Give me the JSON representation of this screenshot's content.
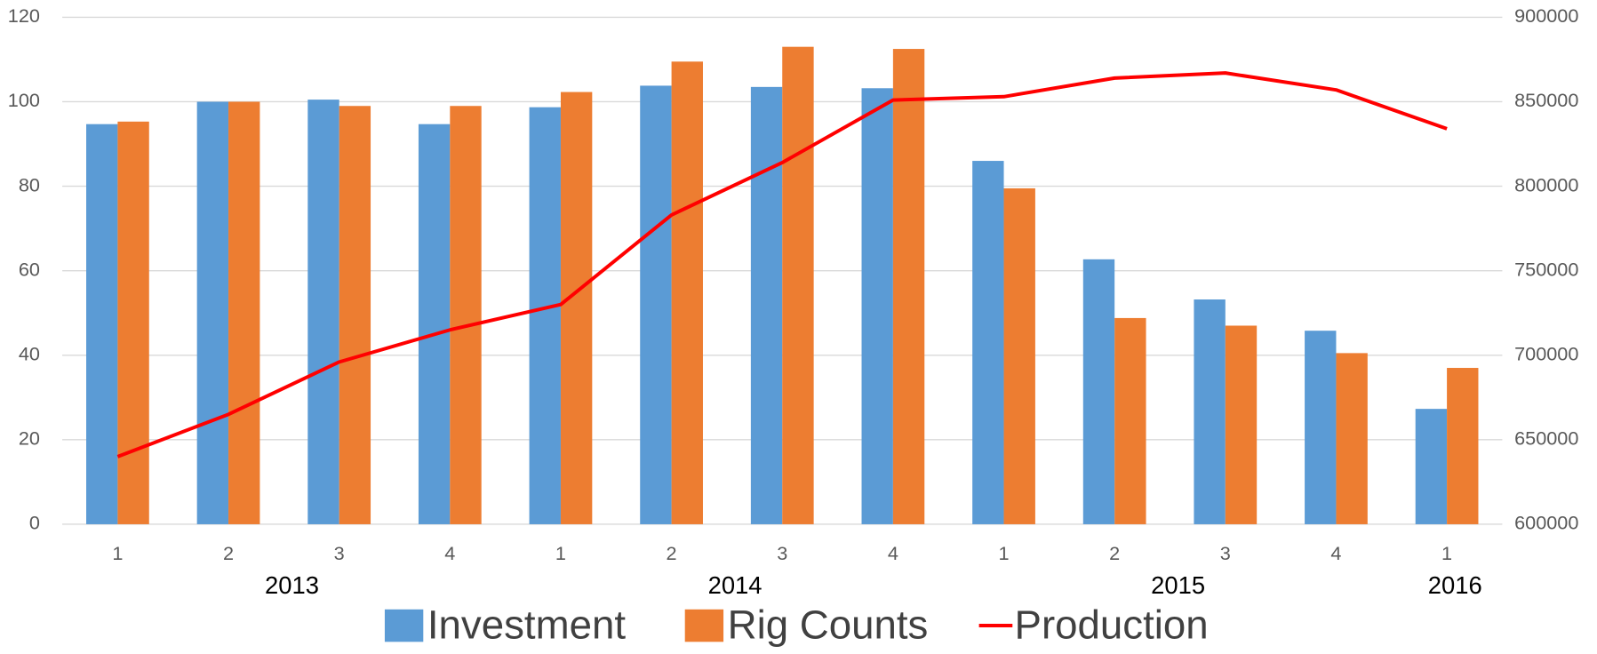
{
  "chart_data": {
    "type": "bar",
    "categories": [
      "1",
      "2",
      "3",
      "4",
      "1",
      "2",
      "3",
      "4",
      "1",
      "2",
      "3",
      "4",
      "1"
    ],
    "year_groups": [
      {
        "label": "2013",
        "size": 4
      },
      {
        "label": "2014",
        "size": 4
      },
      {
        "label": "2015",
        "size": 4
      },
      {
        "label": "2016",
        "size": 1
      }
    ],
    "series": [
      {
        "name": "Investment",
        "type": "bar",
        "color": "#5b9bd5",
        "values": [
          94.7,
          100,
          100.5,
          94.7,
          98.7,
          103.8,
          103.5,
          103.2,
          86,
          62.7,
          53.2,
          45.8,
          27.3
        ]
      },
      {
        "name": "Rig Counts",
        "type": "bar",
        "color": "#ed7d31",
        "values": [
          95.3,
          100,
          99,
          99,
          102.3,
          109.5,
          113,
          112.5,
          79.5,
          48.8,
          47,
          40.5,
          37
        ]
      },
      {
        "name": "Production",
        "type": "line",
        "axis": "y2",
        "color": "#ff0000",
        "values": [
          640000,
          665000,
          696000,
          715000,
          730000,
          783000,
          814000,
          851000,
          853000,
          864000,
          867000,
          857000,
          834000
        ]
      }
    ],
    "ylim": [
      0,
      120
    ],
    "yticks": [
      0,
      20,
      40,
      60,
      80,
      100,
      120
    ],
    "y2lim": [
      600000,
      900000
    ],
    "y2ticks": [
      600000,
      650000,
      700000,
      750000,
      800000,
      850000,
      900000
    ],
    "grid": true,
    "legend": "bottom"
  }
}
